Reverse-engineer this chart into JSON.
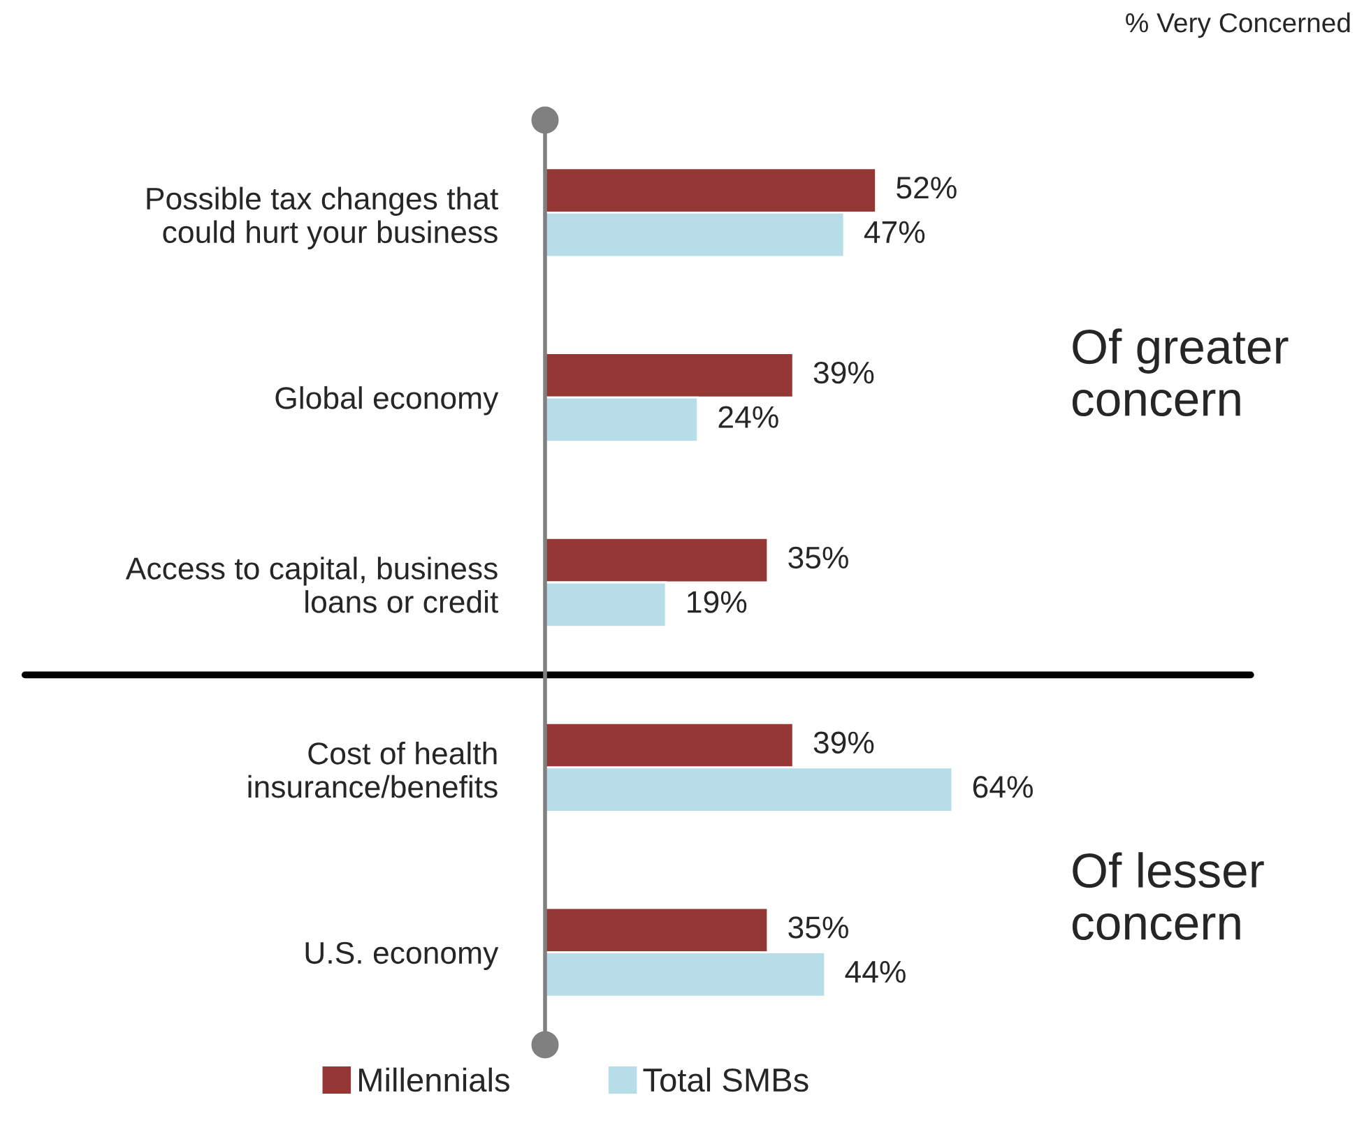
{
  "chart_data": {
    "type": "bar",
    "orientation": "horizontal",
    "categories": [
      "Possible tax changes that\ncould hurt your business",
      "Global economy",
      "Access to capital, business\nloans or credit",
      "Cost of health\ninsurance/benefits",
      "U.S. economy"
    ],
    "series": [
      {
        "name": "Millennials",
        "color": "#953735",
        "values": [
          52,
          39,
          35,
          39,
          35
        ],
        "value_labels": [
          "52%",
          "39%",
          "35%",
          "39%",
          "35%"
        ]
      },
      {
        "name": "Total SMBs",
        "color": "#b7dde8",
        "values": [
          47,
          24,
          19,
          64,
          44
        ],
        "value_labels": [
          "47%",
          "24%",
          "19%",
          "64%",
          "44%"
        ]
      }
    ],
    "annotations": [
      "% Very Concerned",
      "Of greater concern",
      "Of lesser concern"
    ],
    "legend": "bottom",
    "grid": false
  }
}
